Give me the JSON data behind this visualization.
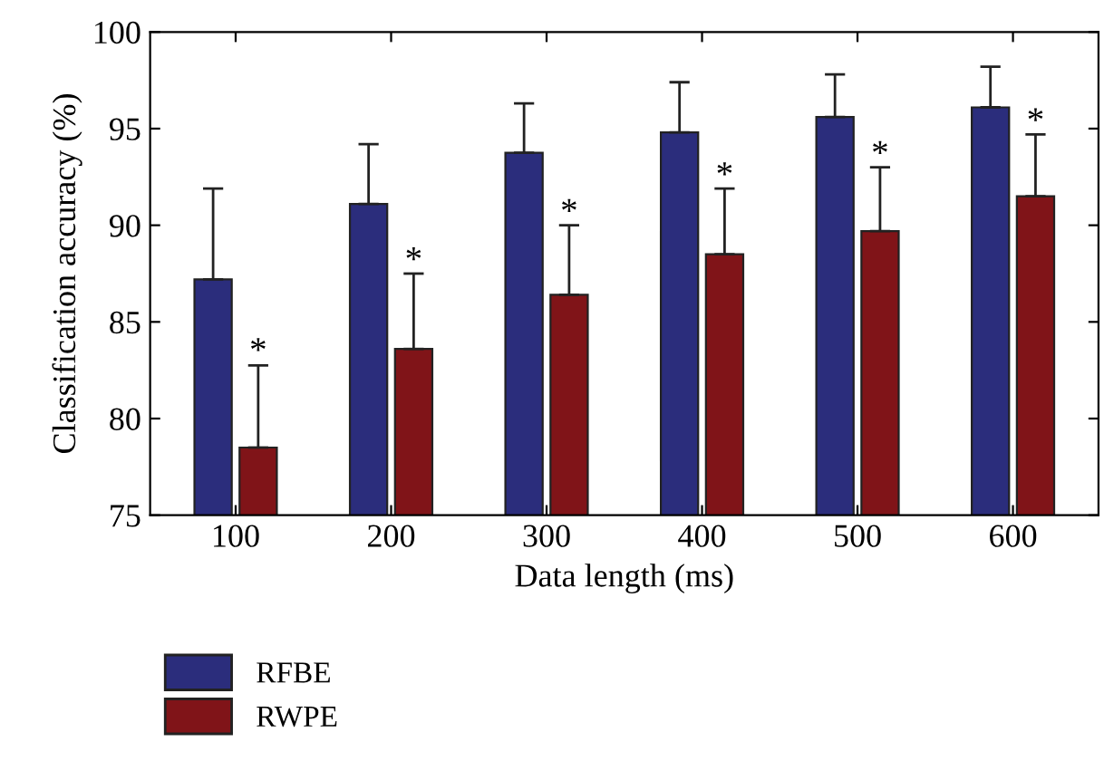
{
  "chart_data": {
    "type": "bar",
    "xlabel": "Data length (ms)",
    "ylabel": "Classification accuracy (%)",
    "categories": [
      "100",
      "200",
      "300",
      "400",
      "500",
      "600"
    ],
    "series": [
      {
        "name": "RFBE",
        "color": "#2b2d7c",
        "values": [
          87.2,
          91.1,
          93.75,
          94.8,
          95.6,
          96.1
        ],
        "errors": [
          [
            87.2,
            91.9
          ],
          [
            91.1,
            94.2
          ],
          [
            93.75,
            96.3
          ],
          [
            94.8,
            97.4
          ],
          [
            95.6,
            97.8
          ],
          [
            96.1,
            98.2
          ]
        ]
      },
      {
        "name": "RWPE",
        "color": "#801418",
        "values": [
          78.5,
          83.6,
          86.4,
          88.5,
          89.7,
          91.5
        ],
        "errors": [
          [
            78.5,
            82.75
          ],
          [
            83.6,
            87.5
          ],
          [
            86.4,
            90.0
          ],
          [
            88.5,
            91.9
          ],
          [
            89.7,
            93.0
          ],
          [
            91.5,
            94.7
          ]
        ]
      }
    ],
    "annotations": [
      {
        "text": "*",
        "x": "100",
        "y": 83.4
      },
      {
        "text": "*",
        "x": "200",
        "y": 88.1
      },
      {
        "text": "*",
        "x": "300",
        "y": 90.6
      },
      {
        "text": "*",
        "x": "400",
        "y": 92.5
      },
      {
        "text": "*",
        "x": "500",
        "y": 93.6
      },
      {
        "text": "*",
        "x": "600",
        "y": 95.3
      }
    ],
    "ylim": [
      75,
      100
    ],
    "yticks": [
      75,
      80,
      85,
      90,
      95,
      100
    ],
    "grid": false,
    "legend": "bottom left"
  }
}
